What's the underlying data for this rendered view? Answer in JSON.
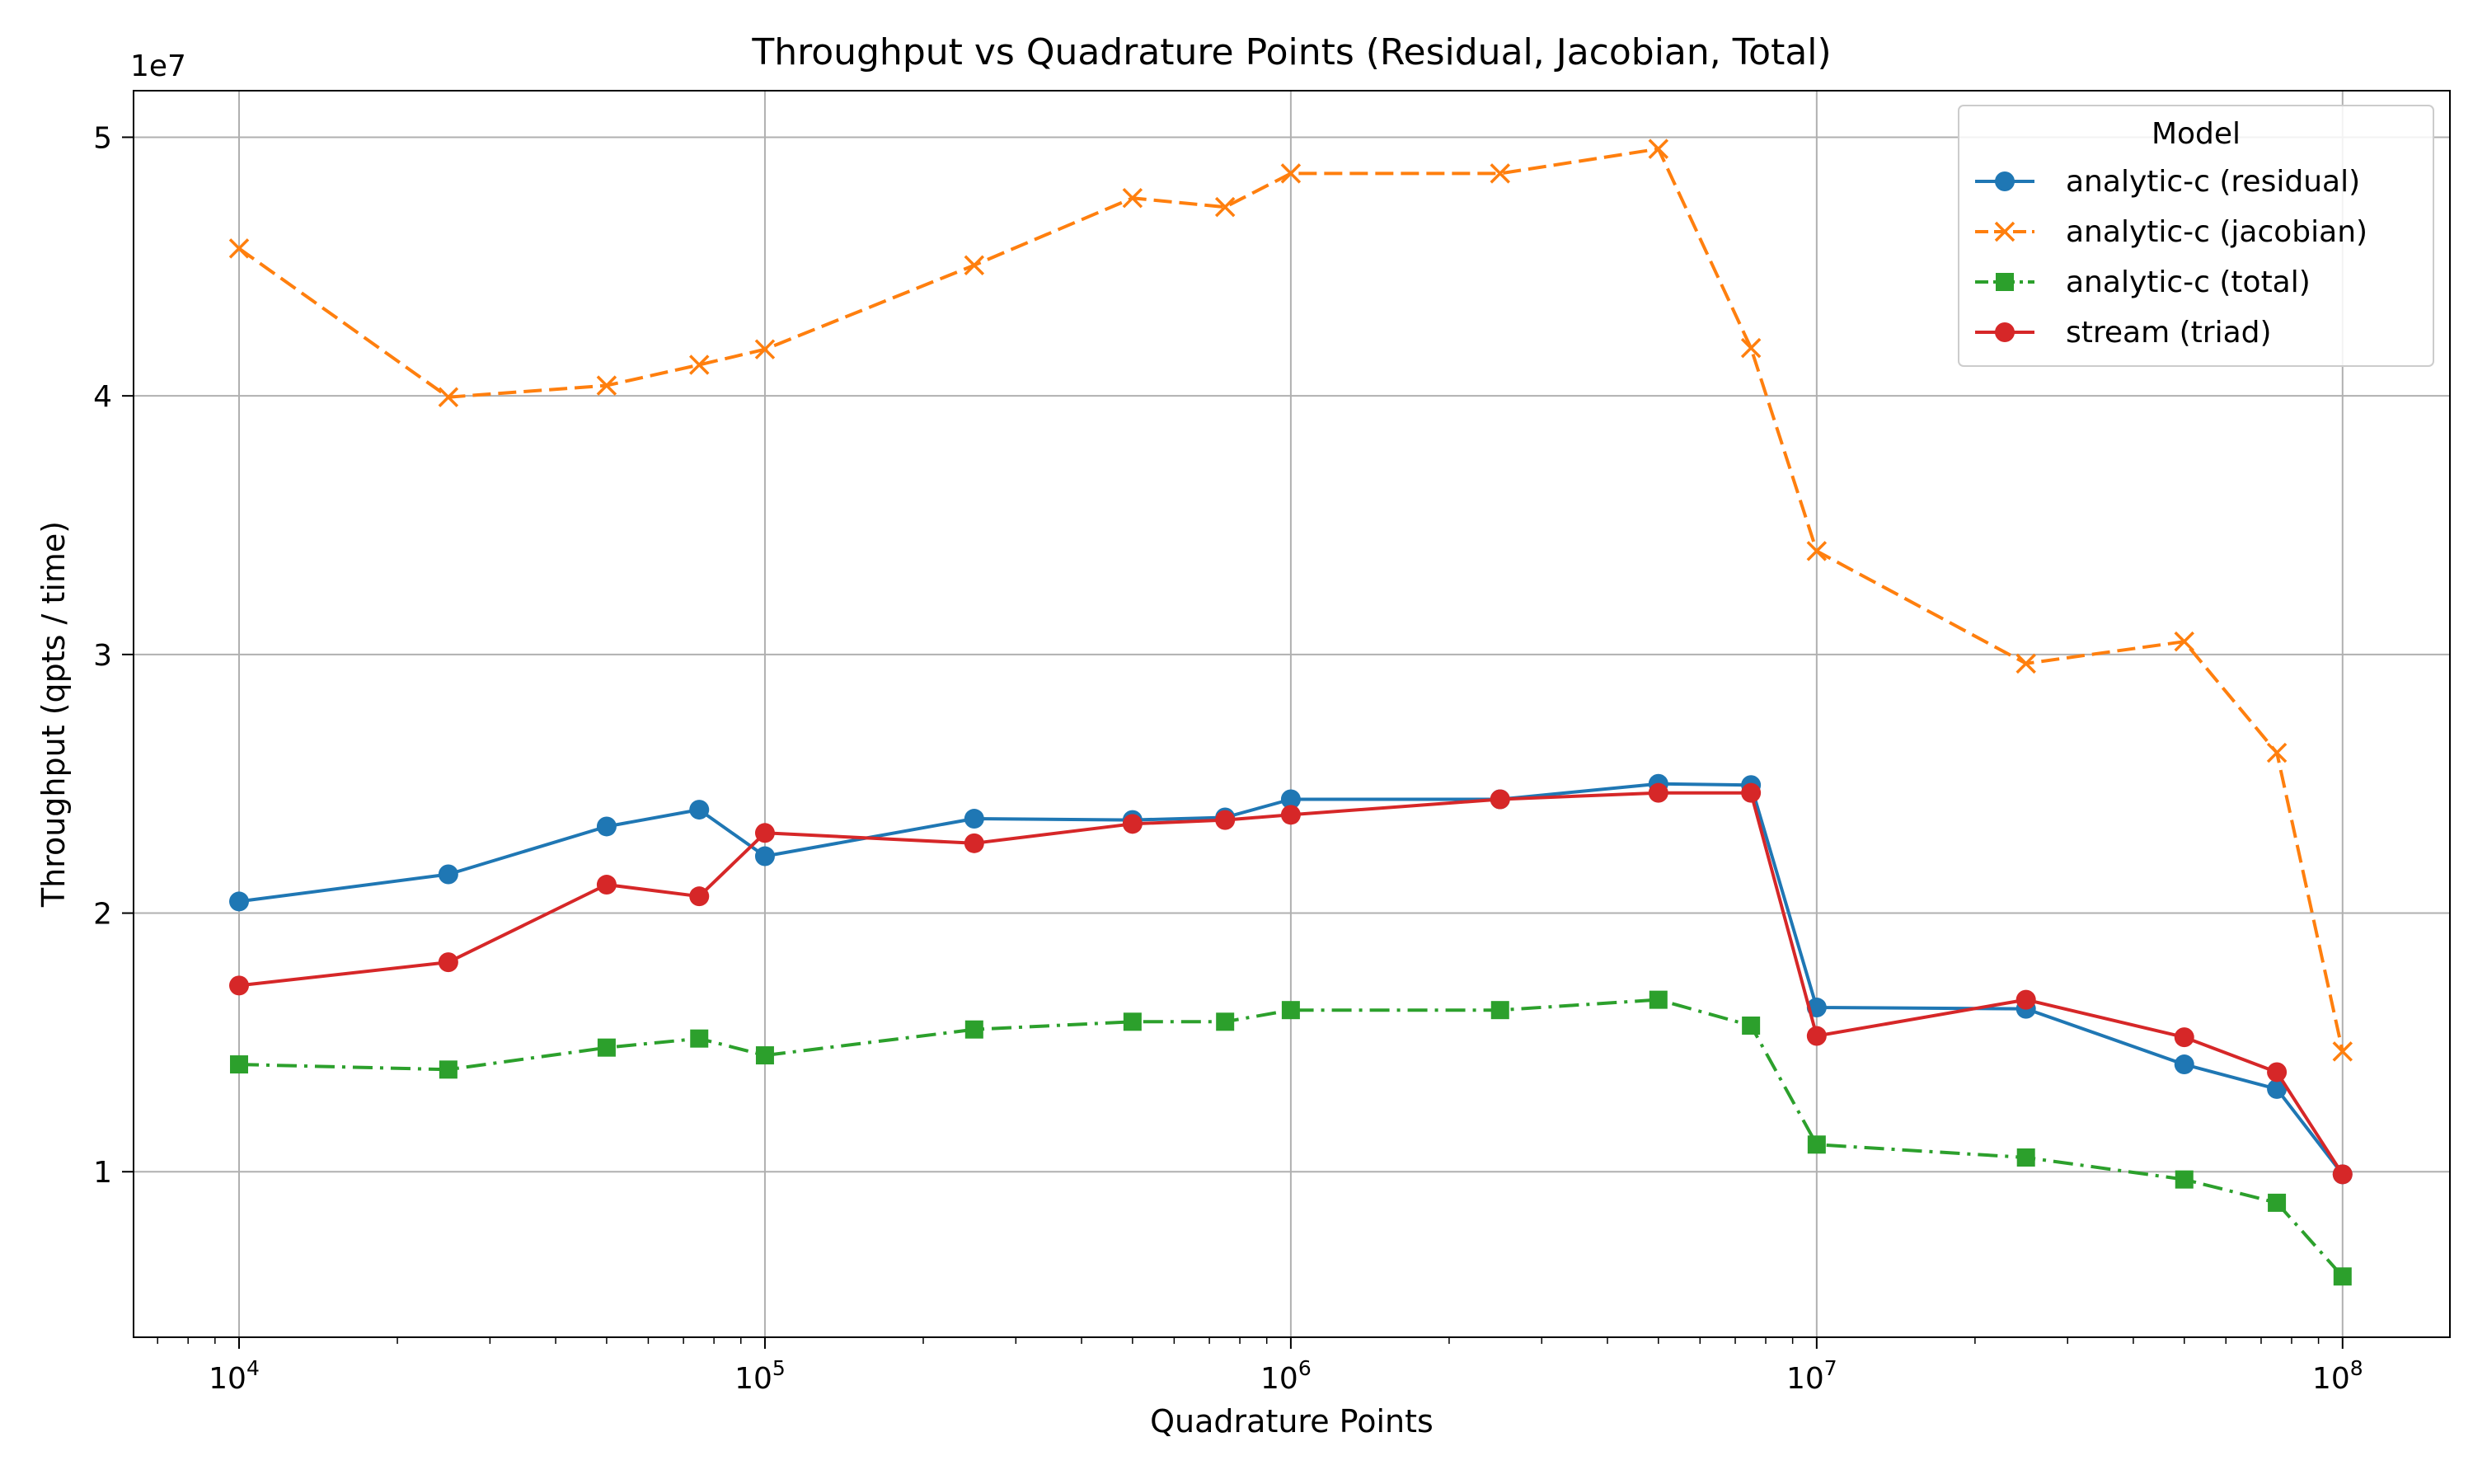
{
  "chart_data": {
    "type": "line",
    "title": "Throughput vs Quadrature Points (Residual, Jacobian, Total)",
    "xlabel": "Quadrature Points",
    "ylabel": "Throughput (qpts / time)",
    "x_scale": "log",
    "y_offset_label": "1e7",
    "xlim": [
      6300,
      160000000
    ],
    "ylim": [
      3600000,
      51800000
    ],
    "grid": true,
    "legend_title": "Model",
    "legend_position": "top-right",
    "x_ticks": [
      {
        "value": 10000,
        "base": "10",
        "exp": "4"
      },
      {
        "value": 100000,
        "base": "10",
        "exp": "5"
      },
      {
        "value": 1000000,
        "base": "10",
        "exp": "6"
      },
      {
        "value": 10000000,
        "base": "10",
        "exp": "7"
      },
      {
        "value": 100000000,
        "base": "10",
        "exp": "8"
      }
    ],
    "y_ticks": [
      {
        "value": 10000000,
        "label": "1"
      },
      {
        "value": 20000000,
        "label": "2"
      },
      {
        "value": 30000000,
        "label": "3"
      },
      {
        "value": 40000000,
        "label": "4"
      },
      {
        "value": 50000000,
        "label": "5"
      }
    ],
    "series": [
      {
        "name": "analytic-c (residual)",
        "color": "#1f77b4",
        "marker": "circle",
        "dash": "solid",
        "x": [
          10000,
          25000,
          50000,
          75000,
          100000,
          250000,
          500000,
          750000,
          1000000,
          2500000,
          5000000,
          7500000,
          10000000,
          25000000,
          50000000,
          75000000,
          100000000
        ],
        "y": [
          20450000,
          21500000,
          23350000,
          24000000,
          22200000,
          23650000,
          23600000,
          23700000,
          24400000,
          24400000,
          25000000,
          24950000,
          16350000,
          16300000,
          14150000,
          13200000,
          9900000
        ]
      },
      {
        "name": "analytic-c (jacobian)",
        "color": "#ff7f0e",
        "marker": "x",
        "dash": "dashed",
        "x": [
          10000,
          25000,
          50000,
          75000,
          100000,
          250000,
          500000,
          750000,
          1000000,
          2500000,
          5000000,
          7500000,
          10000000,
          25000000,
          50000000,
          75000000,
          100000000
        ],
        "y": [
          45700000,
          39950000,
          40400000,
          41200000,
          41800000,
          45050000,
          47650000,
          47300000,
          48600000,
          48600000,
          49550000,
          41850000,
          34000000,
          29650000,
          30500000,
          26200000,
          14650000
        ]
      },
      {
        "name": "analytic-c (total)",
        "color": "#2ca02c",
        "marker": "square",
        "dash": "dashdot",
        "x": [
          10000,
          25000,
          50000,
          75000,
          100000,
          250000,
          500000,
          750000,
          1000000,
          2500000,
          5000000,
          7500000,
          10000000,
          25000000,
          50000000,
          75000000,
          100000000
        ],
        "y": [
          14150000,
          13950000,
          14800000,
          15150000,
          14500000,
          15500000,
          15800000,
          15800000,
          16250000,
          16250000,
          16650000,
          15650000,
          11050000,
          10550000,
          9700000,
          8800000,
          5950000
        ]
      },
      {
        "name": "stream (triad)",
        "color": "#d62728",
        "marker": "circle",
        "dash": "solid",
        "x": [
          10000,
          25000,
          50000,
          75000,
          100000,
          250000,
          500000,
          750000,
          1000000,
          2500000,
          5000000,
          7500000,
          10000000,
          25000000,
          50000000,
          75000000,
          100000000
        ],
        "y": [
          17200000,
          18100000,
          21100000,
          20650000,
          23100000,
          22700000,
          23450000,
          23600000,
          23800000,
          24400000,
          24650000,
          24650000,
          15250000,
          16650000,
          15200000,
          13850000,
          9900000
        ]
      }
    ]
  }
}
